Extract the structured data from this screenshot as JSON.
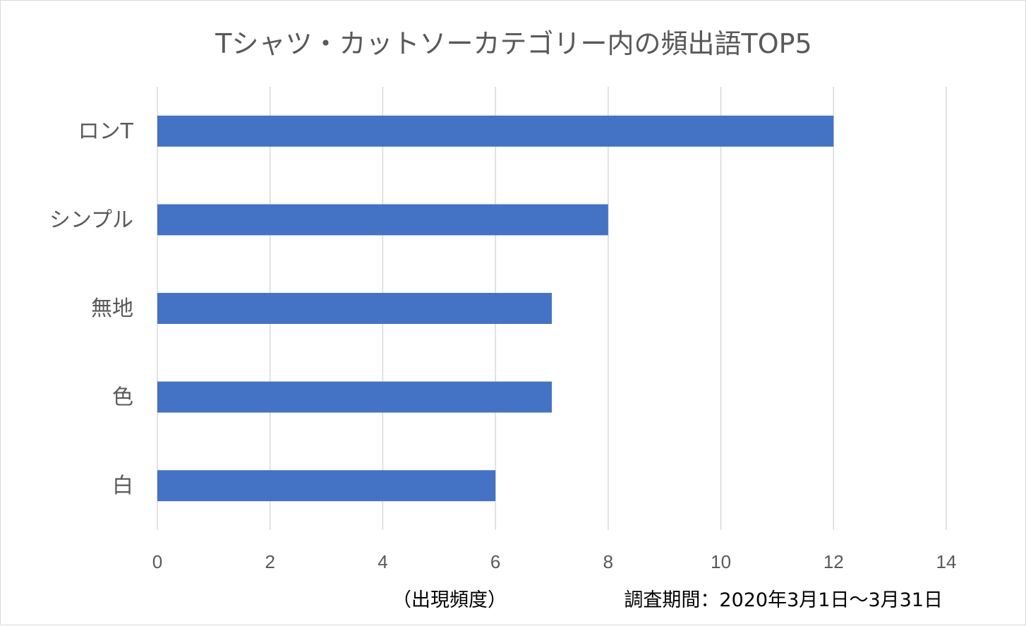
{
  "colors": {
    "bar": "#4472C4",
    "grid": "#d9d9d9",
    "text": "#595959",
    "note": "#000000"
  },
  "footer": {
    "xlabel": "（出現頻度）",
    "period": "調査期間：2020年3月1日～3月31日"
  },
  "chart_data": {
    "type": "bar",
    "orientation": "horizontal",
    "title": "Tシャツ・カットソーカテゴリー内の頻出語TOP5",
    "categories": [
      "ロンT",
      "シンプル",
      "無地",
      "色",
      "白"
    ],
    "values": [
      12,
      8,
      7,
      7,
      6
    ],
    "xlim": [
      0,
      14
    ],
    "xticks": [
      0,
      2,
      4,
      6,
      8,
      10,
      12,
      14
    ],
    "xlabel": "（出現頻度）",
    "ylabel": "",
    "grid": true,
    "legend": "none"
  }
}
